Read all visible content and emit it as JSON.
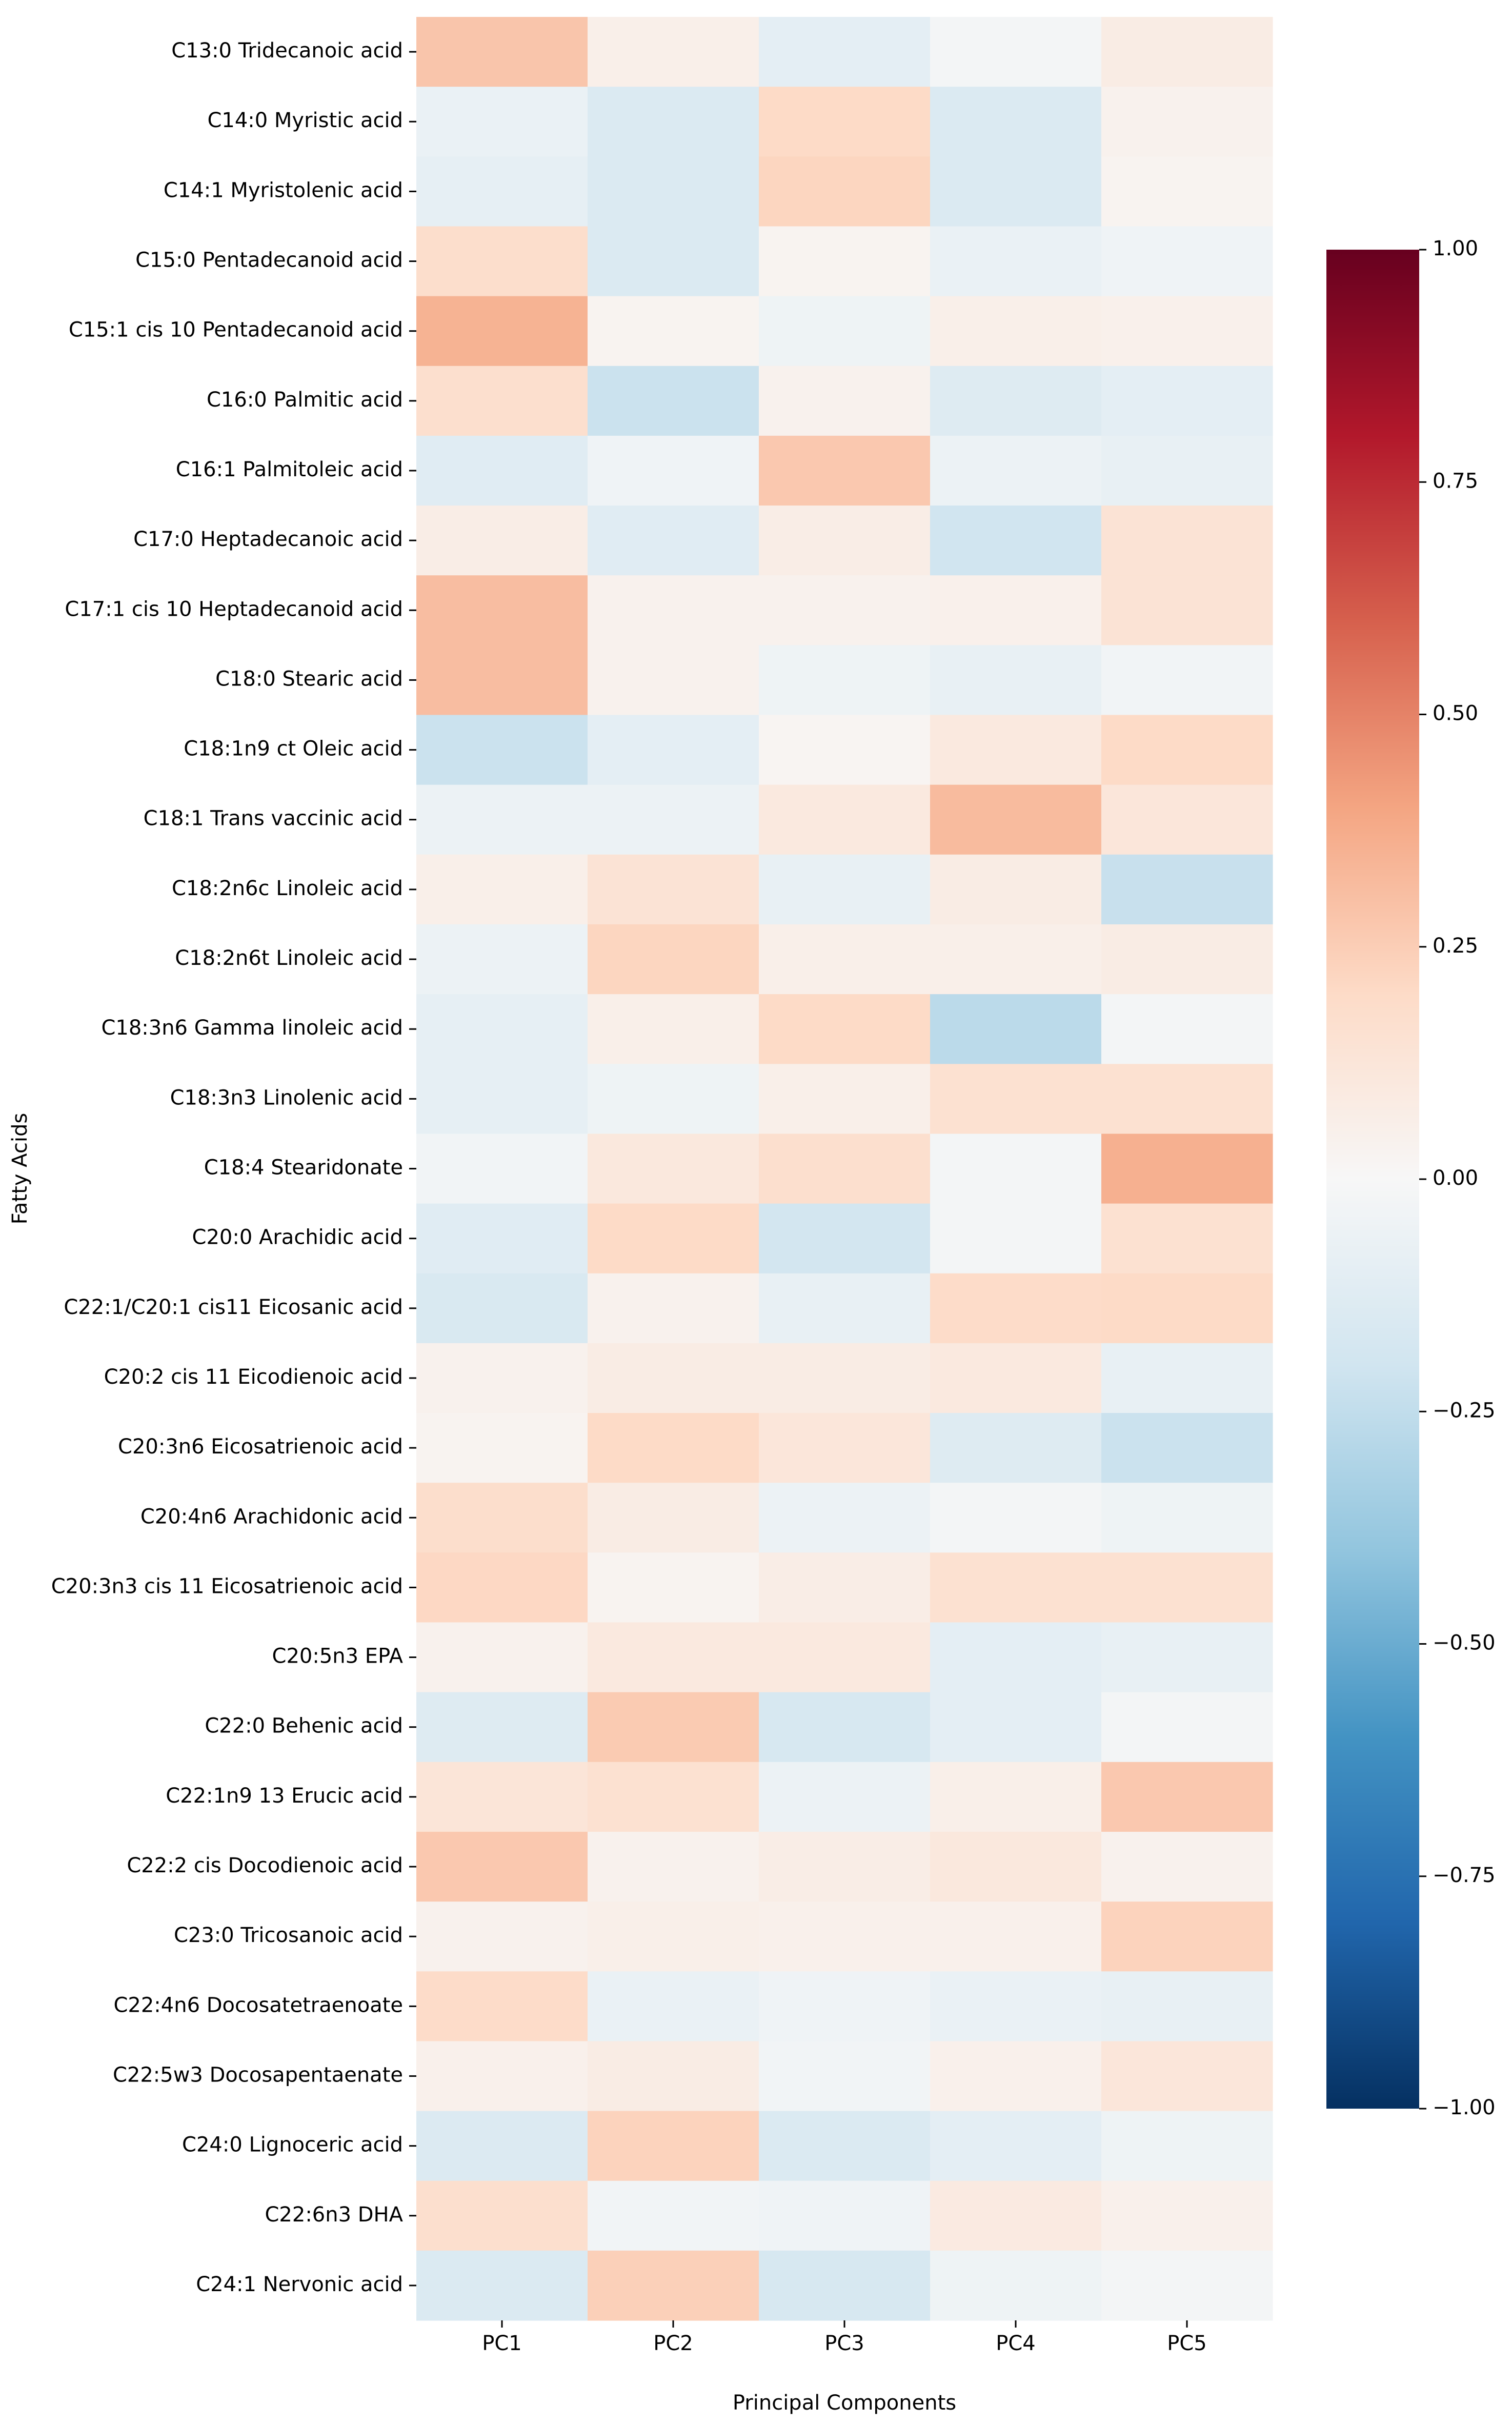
{
  "chart_data": {
    "type": "heatmap",
    "title": "",
    "xlabel": "Principal Components",
    "ylabel": "Fatty Acids",
    "columns": [
      "PC1",
      "PC2",
      "PC3",
      "PC4",
      "PC5"
    ],
    "rows": [
      "C13:0 Tridecanoic acid",
      "C14:0 Myristic acid",
      "C14:1 Myristolenic acid",
      "C15:0 Pentadecanoid acid",
      "C15:1 cis 10 Pentadecanoid acid",
      "C16:0 Palmitic acid",
      "C16:1 Palmitoleic acid",
      "C17:0 Heptadecanoic acid",
      "C17:1 cis 10  Heptadecanoid acid",
      "C18:0 Stearic acid",
      "C18:1n9 ct Oleic acid",
      "C18:1 Trans vaccinic acid",
      "C18:2n6c Linoleic acid",
      "C18:2n6t Linoleic acid",
      "C18:3n6 Gamma linoleic acid",
      "C18:3n3 Linolenic acid",
      "C18:4 Stearidonate",
      "C20:0 Arachidic acid",
      "C22:1/C20:1 cis11  Eicosanic acid",
      "C20:2 cis 11 Eicodienoic acid",
      "C20:3n6 Eicosatrienoic acid",
      "C20:4n6 Arachidonic acid",
      "C20:3n3 cis 11 Eicosatrienoic acid",
      "C20:5n3 EPA",
      "C22:0 Behenic acid",
      "C22:1n9 13 Erucic acid",
      "C22:2 cis Docodienoic acid",
      "C23:0 Tricosanoic acid",
      "C22:4n6 Docosatetraenoate",
      "C22:5w3 Docosapentaenate",
      "C24:0 Lignoceric acid",
      "C22:6n3 DHA",
      "C24:1 Nervonic acid"
    ],
    "values": [
      [
        0.28,
        0.06,
        -0.1,
        -0.02,
        0.08
      ],
      [
        -0.07,
        -0.15,
        0.2,
        -0.15,
        0.04
      ],
      [
        -0.09,
        -0.15,
        0.22,
        -0.15,
        0.03
      ],
      [
        0.18,
        -0.15,
        0.03,
        -0.07,
        -0.04
      ],
      [
        0.35,
        0.03,
        -0.05,
        0.06,
        0.05
      ],
      [
        0.17,
        -0.22,
        0.04,
        -0.13,
        -0.1
      ],
      [
        -0.12,
        -0.04,
        0.27,
        -0.06,
        -0.08
      ],
      [
        0.07,
        -0.12,
        0.07,
        -0.2,
        0.14
      ],
      [
        0.31,
        0.04,
        0.04,
        0.05,
        0.14
      ],
      [
        0.31,
        0.04,
        -0.05,
        -0.08,
        -0.03
      ],
      [
        -0.22,
        -0.1,
        0.02,
        0.1,
        0.2
      ],
      [
        -0.06,
        -0.06,
        0.1,
        0.32,
        0.12
      ],
      [
        0.06,
        0.14,
        -0.08,
        0.08,
        -0.23
      ],
      [
        -0.06,
        0.22,
        0.06,
        0.06,
        0.08
      ],
      [
        -0.09,
        0.06,
        0.2,
        -0.27,
        -0.02
      ],
      [
        -0.09,
        -0.05,
        0.06,
        0.16,
        0.16
      ],
      [
        -0.03,
        0.11,
        0.17,
        -0.02,
        0.36
      ],
      [
        -0.12,
        0.2,
        -0.19,
        -0.02,
        0.16
      ],
      [
        -0.16,
        0.04,
        -0.08,
        0.19,
        0.2
      ],
      [
        0.04,
        0.08,
        0.08,
        0.1,
        -0.08
      ],
      [
        0.03,
        0.2,
        0.12,
        -0.13,
        -0.22
      ],
      [
        0.18,
        0.08,
        -0.06,
        -0.02,
        -0.05
      ],
      [
        0.21,
        0.03,
        0.07,
        0.16,
        0.16
      ],
      [
        0.04,
        0.1,
        0.1,
        -0.1,
        -0.08
      ],
      [
        -0.13,
        0.26,
        -0.17,
        -0.1,
        -0.02
      ],
      [
        0.13,
        0.16,
        -0.06,
        0.06,
        0.27
      ],
      [
        0.27,
        0.04,
        0.07,
        0.11,
        0.04
      ],
      [
        0.04,
        0.06,
        0.05,
        0.05,
        0.23
      ],
      [
        0.19,
        -0.07,
        -0.04,
        -0.07,
        -0.08
      ],
      [
        0.05,
        0.08,
        -0.03,
        0.05,
        0.12
      ],
      [
        -0.14,
        0.23,
        -0.15,
        -0.1,
        -0.05
      ],
      [
        0.17,
        -0.03,
        -0.04,
        0.09,
        0.05
      ],
      [
        -0.15,
        0.24,
        -0.17,
        -0.05,
        -0.02
      ]
    ],
    "vmin": -1.0,
    "vmax": 1.0,
    "colormap": "RdBu_r",
    "colorbar": {
      "ticks": [
        1.0,
        0.75,
        0.5,
        0.25,
        0.0,
        -0.25,
        -0.5,
        -0.75,
        -1.0
      ],
      "tick_labels": [
        "1.00",
        "0.75",
        "0.50",
        "0.25",
        "0.00",
        "−0.25",
        "−0.50",
        "−0.75",
        "−1.00"
      ],
      "colors": [
        "#053061",
        "#2166ac",
        "#4393c3",
        "#92c5de",
        "#d1e5f0",
        "#f7f7f7",
        "#fddbc7",
        "#f4a582",
        "#d6604d",
        "#b2182b",
        "#67001f"
      ]
    }
  }
}
